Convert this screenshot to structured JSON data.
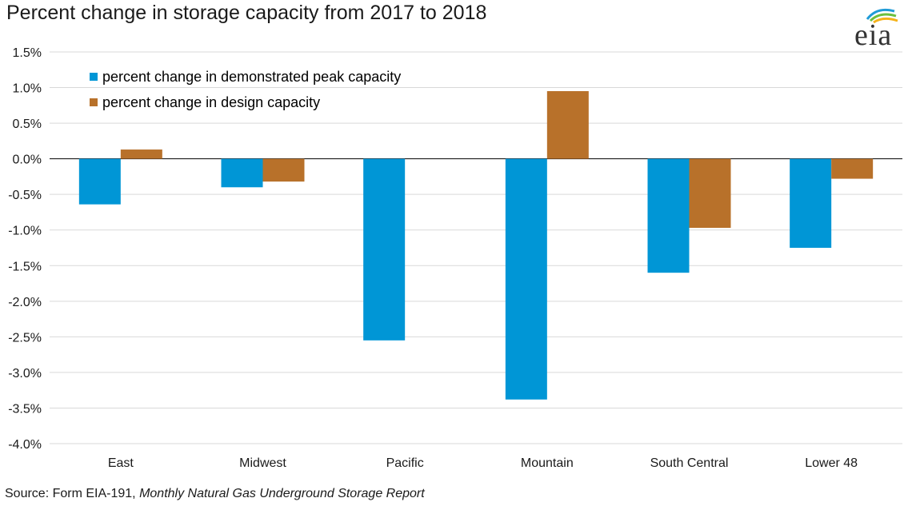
{
  "title": "Percent change in storage capacity from 2017 to 2018",
  "logo_text": "eia",
  "source": {
    "prefix": "Source: Form EIA-191, ",
    "italic": "Monthly Natural Gas Underground Storage Report"
  },
  "chart_data": {
    "type": "bar",
    "categories": [
      "East",
      "Midwest",
      "Pacific",
      "Mountain",
      "South Central",
      "Lower 48"
    ],
    "series": [
      {
        "name": "percent change in demonstrated peak capacity",
        "color": "#0096d6",
        "values": [
          -0.64,
          -0.4,
          -2.55,
          -3.38,
          -1.6,
          -1.25
        ]
      },
      {
        "name": "percent change in design capacity",
        "color": "#b8712a",
        "values": [
          0.13,
          -0.32,
          0.0,
          0.95,
          -0.97,
          -0.28
        ]
      }
    ],
    "ylim": [
      -4.0,
      1.5
    ],
    "yticks": [
      1.5,
      1.0,
      0.5,
      0.0,
      -0.5,
      -1.0,
      -1.5,
      -2.0,
      -2.5,
      -3.0,
      -3.5,
      -4.0
    ],
    "ytick_labels": [
      "1.5%",
      "1.0%",
      "0.5%",
      "0.0%",
      "-0.5%",
      "-1.0%",
      "-1.5%",
      "-2.0%",
      "-2.5%",
      "-3.0%",
      "-3.5%",
      "-4.0%"
    ],
    "grid": true,
    "legend_position": "top-left"
  }
}
